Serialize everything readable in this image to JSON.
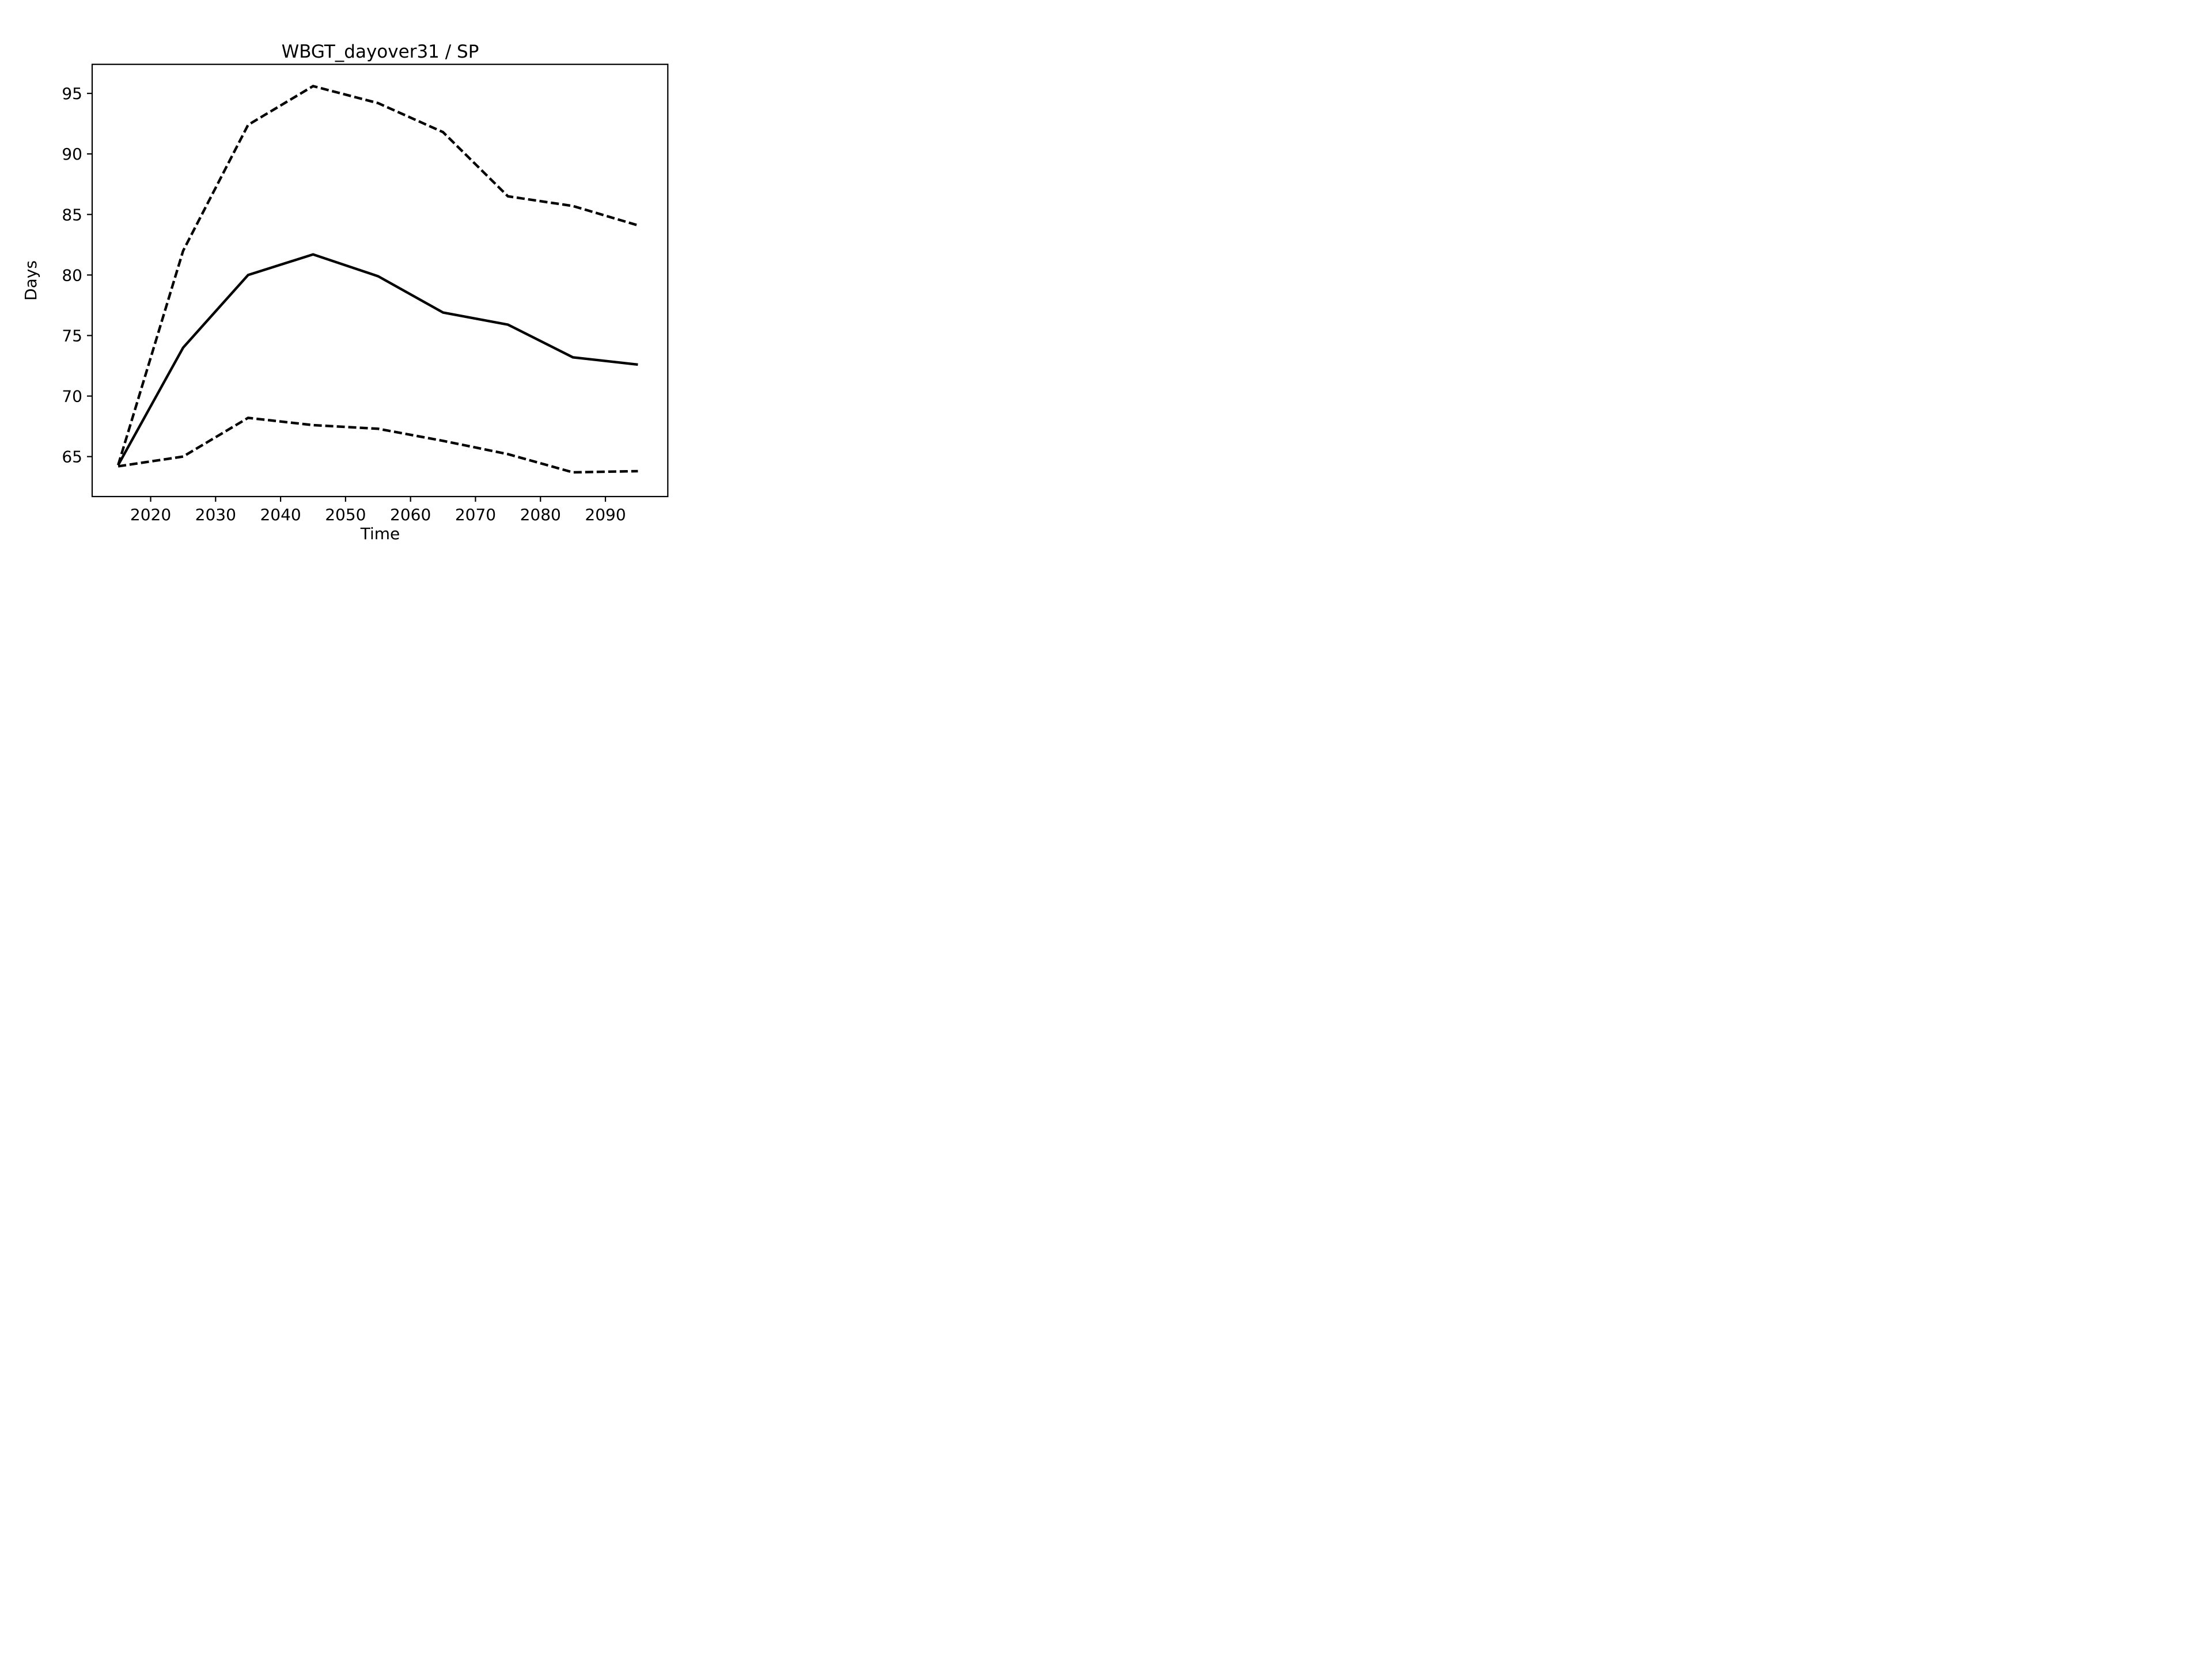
{
  "figure": {
    "background": "#ffffff"
  },
  "chart_data": {
    "type": "line",
    "title": "WBGT_dayover31 / SP",
    "xlabel": "Time",
    "ylabel": "Days",
    "x": [
      2015,
      2025,
      2035,
      2045,
      2055,
      2065,
      2075,
      2085,
      2095
    ],
    "series": [
      {
        "name": "upper-bound",
        "style": "dashed",
        "values": [
          64.3,
          82.0,
          92.4,
          95.6,
          94.2,
          91.8,
          86.5,
          85.7,
          84.1
        ]
      },
      {
        "name": "mean",
        "style": "solid",
        "values": [
          64.3,
          74.0,
          80.0,
          81.7,
          79.9,
          76.9,
          75.9,
          73.2,
          72.6
        ]
      },
      {
        "name": "lower-bound",
        "style": "dashed",
        "values": [
          64.2,
          65.0,
          68.2,
          67.6,
          67.3,
          66.3,
          65.2,
          63.7,
          63.8
        ]
      }
    ],
    "xticks": [
      2020,
      2030,
      2040,
      2050,
      2060,
      2070,
      2080,
      2090
    ],
    "yticks": [
      65,
      70,
      75,
      80,
      85,
      90,
      95
    ],
    "xlim": [
      2011.0,
      2099.6
    ],
    "ylim": [
      61.7,
      97.4
    ],
    "grid": false,
    "legend_position": "none",
    "line_color": "#000000"
  }
}
